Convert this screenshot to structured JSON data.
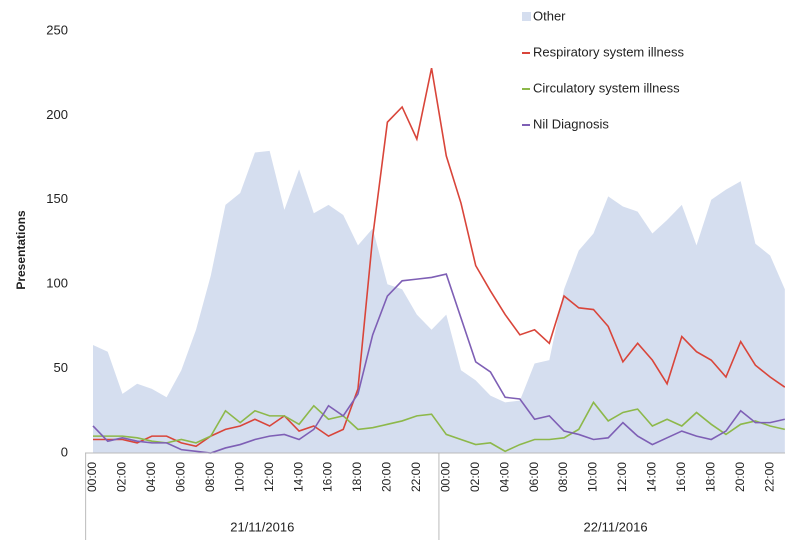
{
  "chart_data": {
    "type": "line",
    "y_label": "Presentations",
    "categories": [
      "00:00",
      null,
      "02:00",
      null,
      "04:00",
      null,
      "06:00",
      null,
      "08:00",
      null,
      "10:00",
      null,
      "12:00",
      null,
      "14:00",
      null,
      "16:00",
      null,
      "18:00",
      null,
      "20:00",
      null,
      "22:00",
      null,
      "00:00",
      null,
      "02:00",
      null,
      "04:00",
      null,
      "06:00",
      null,
      "08:00",
      null,
      "10:00",
      null,
      "12:00",
      null,
      "14:00",
      null,
      "16:00",
      null,
      "18:00",
      null,
      "20:00",
      null,
      "22:00",
      null
    ],
    "x_groups": [
      "21/11/2016",
      "22/11/2016"
    ],
    "ylim": [
      0,
      250
    ],
    "yticks": [
      0,
      50,
      100,
      150,
      200,
      250
    ],
    "series": [
      {
        "name": "Other",
        "kind": "area",
        "color": "#d5deef",
        "values": [
          64,
          60,
          35,
          41,
          38,
          33,
          49,
          73,
          105,
          147,
          154,
          178,
          179,
          144,
          168,
          142,
          147,
          141,
          123,
          133,
          100,
          97,
          82,
          73,
          82,
          49,
          43,
          34,
          30,
          31,
          53,
          55,
          97,
          120,
          130,
          152,
          146,
          143,
          130,
          138,
          147,
          123,
          150,
          156,
          161,
          124,
          117,
          97
        ]
      },
      {
        "name": "Respiratory system illness",
        "kind": "line",
        "color": "#d9453a",
        "values": [
          8,
          8,
          8,
          6,
          10,
          10,
          6,
          4,
          10,
          14,
          16,
          20,
          16,
          22,
          13,
          16,
          10,
          14,
          38,
          128,
          196,
          205,
          186,
          228,
          176,
          148,
          111,
          96,
          82,
          70,
          73,
          65,
          93,
          86,
          85,
          75,
          54,
          65,
          55,
          41,
          69,
          60,
          55,
          45,
          66,
          52,
          45,
          39
        ]
      },
      {
        "name": "Circulatory system illness",
        "kind": "line",
        "color": "#8db84a",
        "values": [
          10,
          10,
          10,
          9,
          7,
          6,
          8,
          6,
          10,
          25,
          18,
          25,
          22,
          22,
          17,
          28,
          20,
          22,
          14,
          15,
          17,
          19,
          22,
          23,
          11,
          8,
          5,
          6,
          1,
          5,
          8,
          8,
          9,
          14,
          30,
          19,
          24,
          26,
          16,
          20,
          16,
          24,
          17,
          11,
          17,
          19,
          16,
          14
        ]
      },
      {
        "name": "Nil Diagnosis",
        "kind": "line",
        "color": "#7e5fb5",
        "values": [
          16,
          7,
          9,
          7,
          6,
          6,
          2,
          1,
          0,
          3,
          5,
          8,
          10,
          11,
          8,
          14,
          28,
          22,
          35,
          70,
          93,
          102,
          103,
          104,
          106,
          80,
          54,
          48,
          33,
          32,
          20,
          22,
          13,
          11,
          8,
          9,
          18,
          10,
          5,
          9,
          13,
          10,
          8,
          13,
          25,
          18,
          18,
          20
        ]
      }
    ]
  }
}
